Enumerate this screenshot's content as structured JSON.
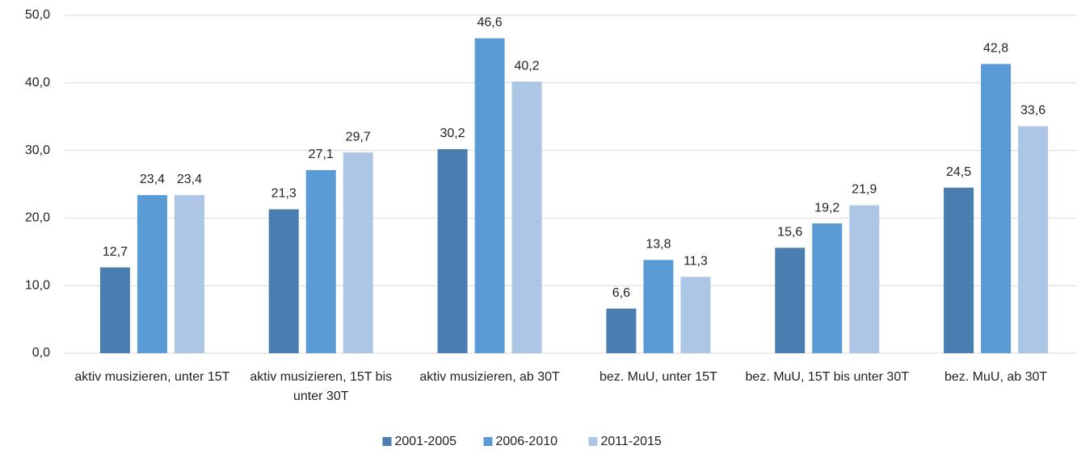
{
  "chart_data": {
    "type": "bar",
    "categories": [
      "aktiv musizieren, unter 15T",
      "aktiv musizieren, 15T bis unter 30T",
      "aktiv musizieren, ab 30T",
      "bez. MuU, unter 15T",
      "bez. MuU, 15T bis unter 30T",
      "bez. MuU, ab 30T"
    ],
    "series": [
      {
        "name": "2001-2005",
        "color": "#4a7eb0",
        "values": [
          12.7,
          21.3,
          30.2,
          6.6,
          15.6,
          24.5
        ],
        "value_labels": [
          "12,7",
          "21,3",
          "30,2",
          "6,6",
          "15,6",
          "24,5"
        ]
      },
      {
        "name": "2006-2010",
        "color": "#5b9bd5",
        "values": [
          23.4,
          27.1,
          46.6,
          13.8,
          19.2,
          42.8
        ],
        "value_labels": [
          "23,4",
          "27,1",
          "46,6",
          "13,8",
          "19,2",
          "42,8"
        ]
      },
      {
        "name": "2011-2015",
        "color": "#adc6e6",
        "values": [
          23.4,
          29.7,
          40.2,
          11.3,
          21.9,
          33.6
        ],
        "value_labels": [
          "23,4",
          "29,7",
          "40,2",
          "11,3",
          "21,9",
          "33,6"
        ]
      }
    ],
    "ylim": [
      0,
      50
    ],
    "yticks": [
      {
        "value": 0,
        "label": "0,0"
      },
      {
        "value": 10,
        "label": "10,0"
      },
      {
        "value": 20,
        "label": "20,0"
      },
      {
        "value": 30,
        "label": "30,0"
      },
      {
        "value": 40,
        "label": "40,0"
      },
      {
        "value": 50,
        "label": "50,0"
      }
    ],
    "grid": true,
    "legend": "bottom"
  }
}
